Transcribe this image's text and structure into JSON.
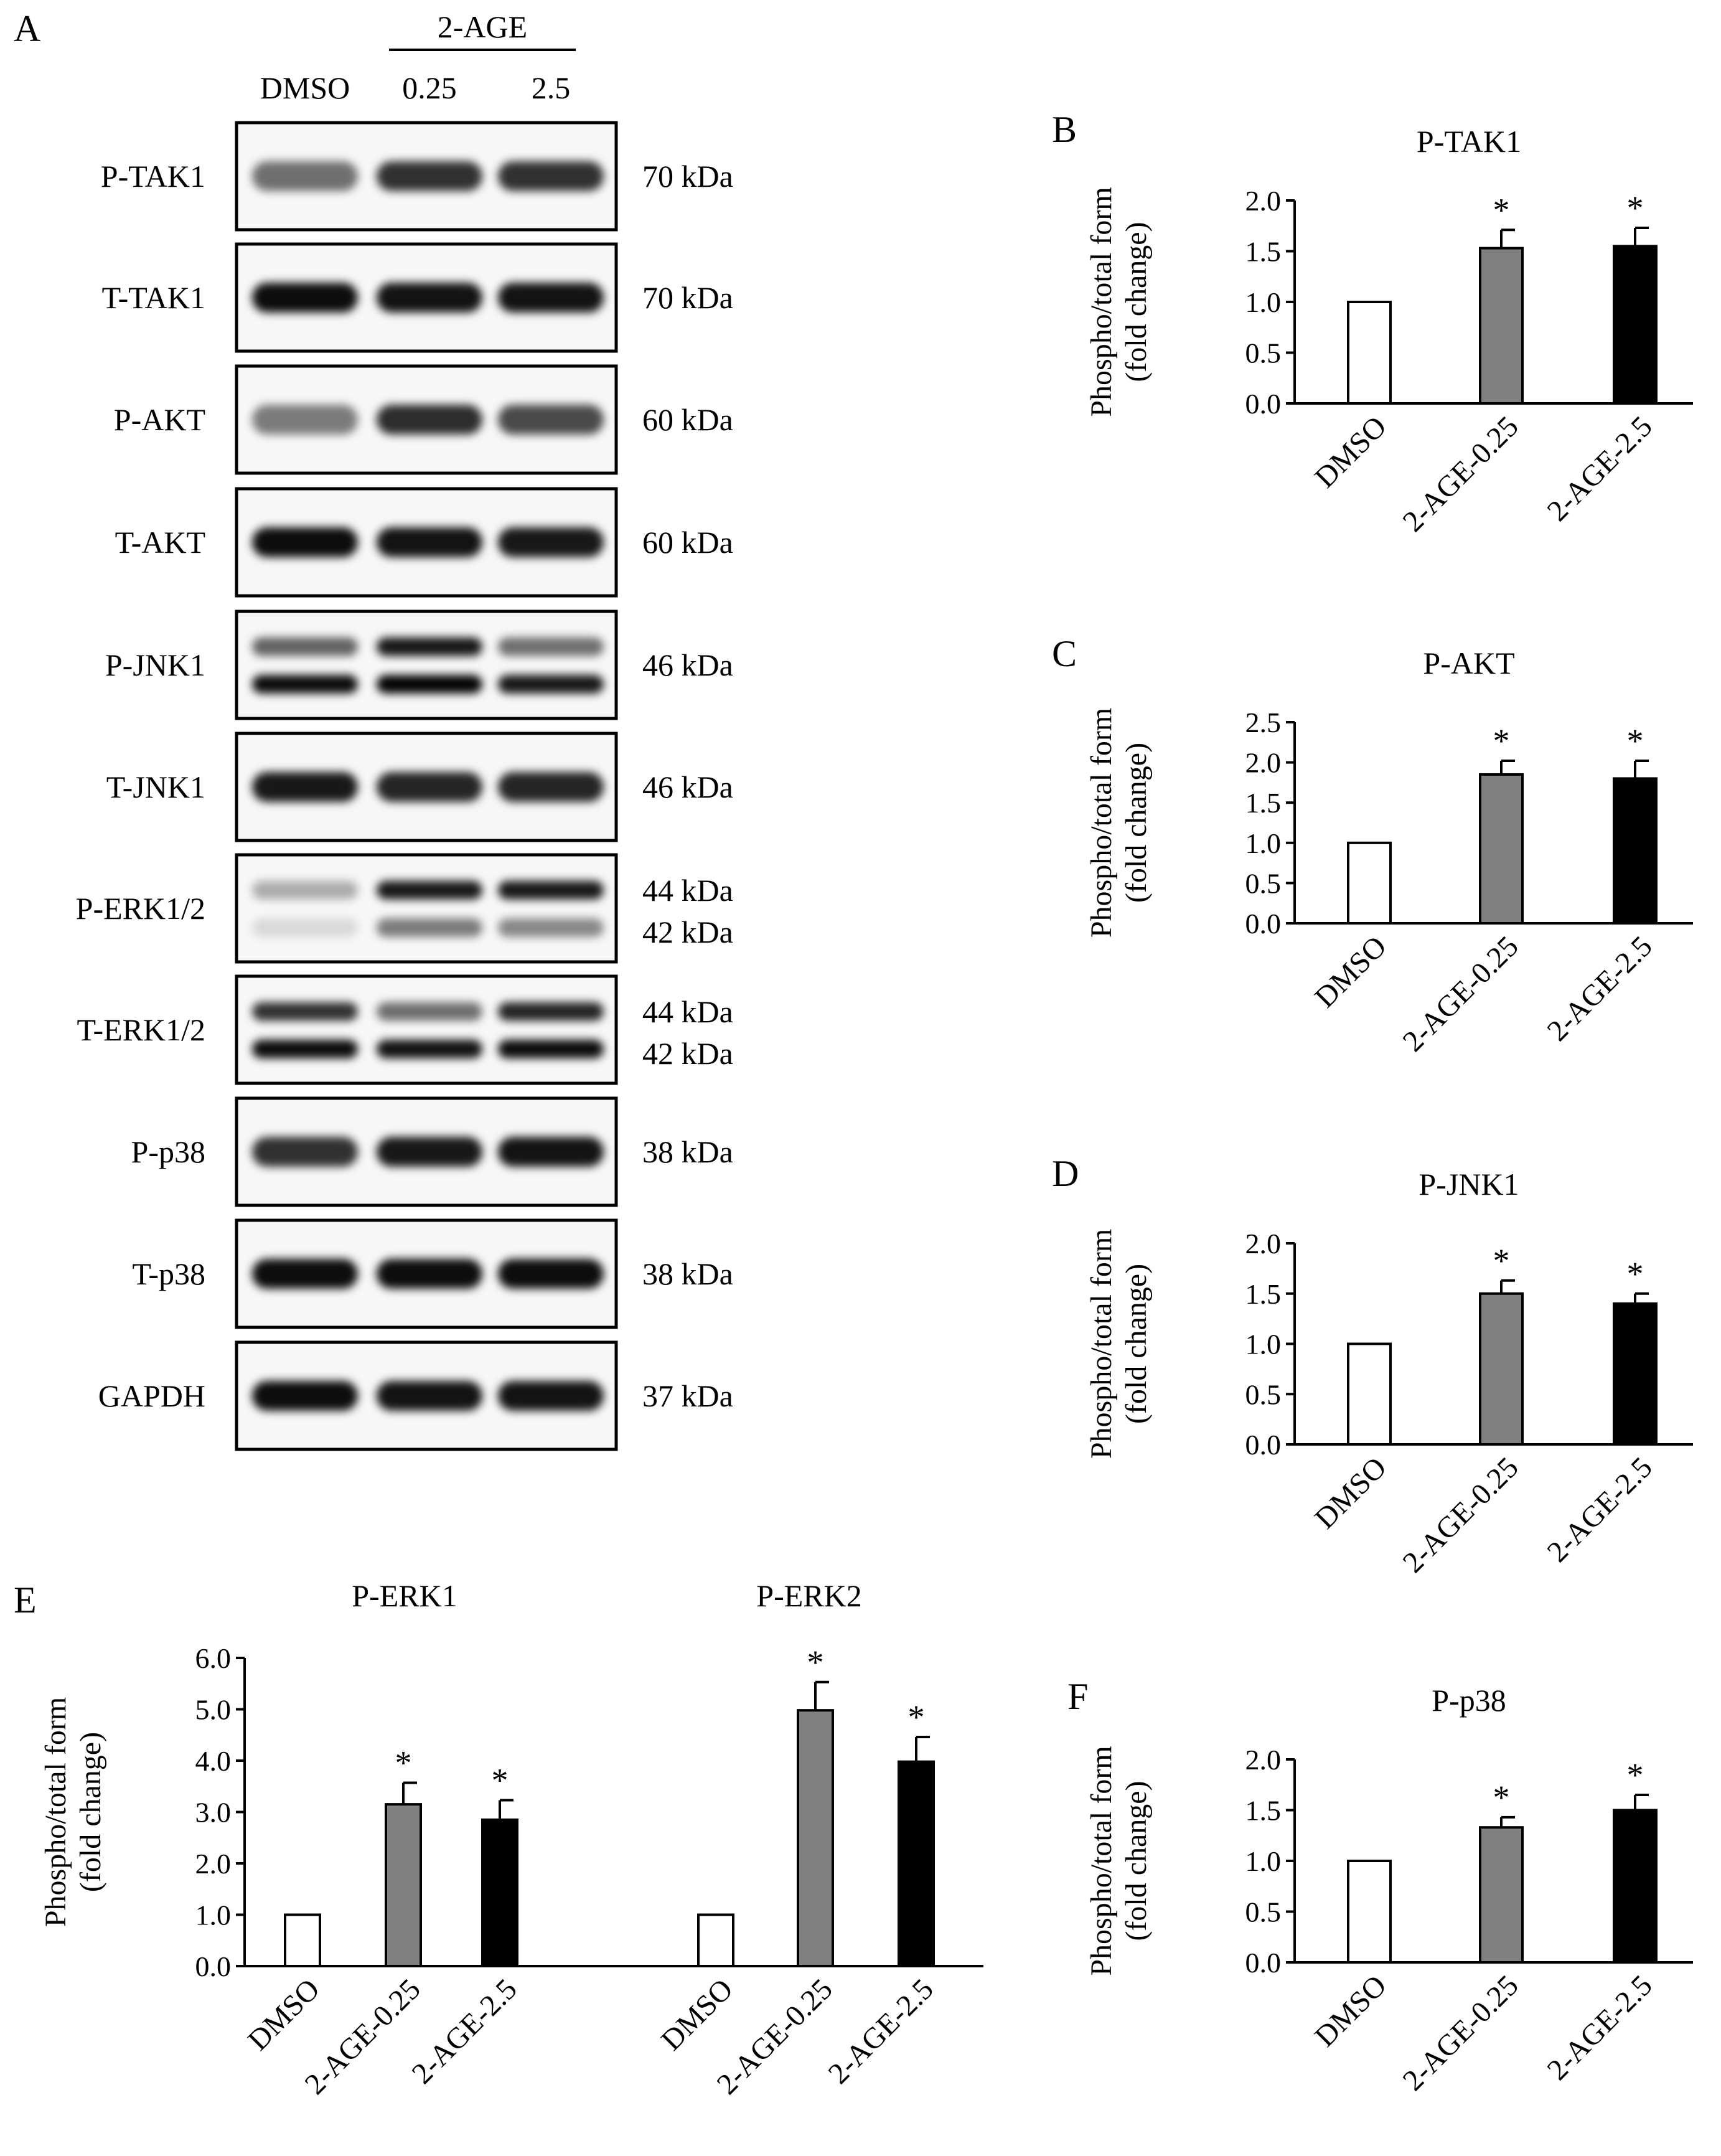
{
  "panel_letters": {
    "a": "A",
    "b": "B",
    "c": "C",
    "d": "D",
    "e": "E",
    "f": "F"
  },
  "blot": {
    "treatment_label": "2-AGE",
    "lanes": [
      "DMSO",
      "0.25",
      "2.5"
    ],
    "rows": [
      {
        "label": "P-TAK1",
        "kda": [
          "70 kDa"
        ],
        "bands": [
          [
            0.55,
            0.8,
            0.8
          ]
        ]
      },
      {
        "label": "T-TAK1",
        "kda": [
          "70 kDa"
        ],
        "bands": [
          [
            0.95,
            0.92,
            0.92
          ]
        ]
      },
      {
        "label": "P-AKT",
        "kda": [
          "60 kDa"
        ],
        "bands": [
          [
            0.5,
            0.82,
            0.7
          ]
        ]
      },
      {
        "label": "T-AKT",
        "kda": [
          "60 kDa"
        ],
        "bands": [
          [
            0.95,
            0.92,
            0.9
          ]
        ]
      },
      {
        "label": "P-JNK1",
        "kda": [
          "46 kDa"
        ],
        "bands": [
          [
            0.6,
            0.9,
            0.55
          ],
          [
            0.95,
            0.98,
            0.9
          ]
        ]
      },
      {
        "label": "T-JNK1",
        "kda": [
          "46 kDa"
        ],
        "bands": [
          [
            0.9,
            0.85,
            0.85
          ]
        ]
      },
      {
        "label": "P-ERK1/2",
        "kda": [
          "44 kDa",
          "42 kDa"
        ],
        "bands": [
          [
            0.3,
            0.9,
            0.9
          ],
          [
            0.12,
            0.5,
            0.45
          ]
        ]
      },
      {
        "label": "T-ERK1/2",
        "kda": [
          "44 kDa",
          "42 kDa"
        ],
        "bands": [
          [
            0.8,
            0.55,
            0.85
          ],
          [
            0.95,
            0.92,
            0.95
          ]
        ]
      },
      {
        "label": "P-p38",
        "kda": [
          "38 kDa"
        ],
        "bands": [
          [
            0.8,
            0.9,
            0.92
          ]
        ]
      },
      {
        "label": "T-p38",
        "kda": [
          "38 kDa"
        ],
        "bands": [
          [
            0.95,
            0.95,
            0.95
          ]
        ]
      },
      {
        "label": "GAPDH",
        "kda": [
          "37 kDa"
        ],
        "bands": [
          [
            0.95,
            0.92,
            0.92
          ]
        ]
      }
    ]
  },
  "chart_data": [
    {
      "panel": "B",
      "type": "bar",
      "title": "P-TAK1",
      "ylabel_line1": "Phospho/total form",
      "ylabel_line2": "(fold change)",
      "ylim": [
        0,
        2.0
      ],
      "yticks": [
        "0.0",
        "0.5",
        "1.0",
        "1.5",
        "2.0"
      ],
      "categories": [
        "DMSO",
        "2-AGE-0.25",
        "2-AGE-2.5"
      ],
      "values": [
        1.0,
        1.53,
        1.55
      ],
      "errors": [
        0,
        0.18,
        0.18
      ],
      "significance": [
        "",
        "*",
        "*"
      ],
      "bar_colors": [
        "#ffffff",
        "#808080",
        "#000000"
      ]
    },
    {
      "panel": "C",
      "type": "bar",
      "title": "P-AKT",
      "ylabel_line1": "Phospho/total form",
      "ylabel_line2": "(fold change)",
      "ylim": [
        0,
        2.5
      ],
      "yticks": [
        "0.0",
        "0.5",
        "1.0",
        "1.5",
        "2.0",
        "2.5"
      ],
      "categories": [
        "DMSO",
        "2-AGE-0.25",
        "2-AGE-2.5"
      ],
      "values": [
        1.0,
        1.85,
        1.8
      ],
      "errors": [
        0,
        0.17,
        0.22
      ],
      "significance": [
        "",
        "*",
        "*"
      ],
      "bar_colors": [
        "#ffffff",
        "#808080",
        "#000000"
      ]
    },
    {
      "panel": "D",
      "type": "bar",
      "title": "P-JNK1",
      "ylabel_line1": "Phospho/total form",
      "ylabel_line2": "(fold change)",
      "ylim": [
        0,
        2.0
      ],
      "yticks": [
        "0.0",
        "0.5",
        "1.0",
        "1.5",
        "2.0"
      ],
      "categories": [
        "DMSO",
        "2-AGE-0.25",
        "2-AGE-2.5"
      ],
      "values": [
        1.0,
        1.5,
        1.4
      ],
      "errors": [
        0,
        0.13,
        0.1
      ],
      "significance": [
        "",
        "*",
        "*"
      ],
      "bar_colors": [
        "#ffffff",
        "#808080",
        "#000000"
      ]
    },
    {
      "panel": "E",
      "type": "bar",
      "titles": [
        "P-ERK1",
        "P-ERK2"
      ],
      "ylabel_line1": "Phospho/total form",
      "ylabel_line2": "(fold change)",
      "ylim": [
        0,
        6.0
      ],
      "yticks": [
        "0.0",
        "1.0",
        "2.0",
        "3.0",
        "4.0",
        "5.0",
        "6.0"
      ],
      "groups": [
        {
          "name": "P-ERK1",
          "categories": [
            "DMSO",
            "2-AGE-0.25",
            "2-AGE-2.5"
          ],
          "values": [
            1.0,
            3.15,
            2.85
          ],
          "errors": [
            0,
            0.42,
            0.38
          ],
          "significance": [
            "",
            "*",
            "*"
          ]
        },
        {
          "name": "P-ERK2",
          "categories": [
            "DMSO",
            "2-AGE-0.25",
            "2-AGE-2.5"
          ],
          "values": [
            1.0,
            4.98,
            3.98
          ],
          "errors": [
            0,
            0.55,
            0.48
          ],
          "significance": [
            "",
            "*",
            "*"
          ]
        }
      ],
      "bar_colors": [
        "#ffffff",
        "#808080",
        "#000000"
      ]
    },
    {
      "panel": "F",
      "type": "bar",
      "title": "P-p38",
      "ylabel_line1": "Phospho/total form",
      "ylabel_line2": "(fold change)",
      "ylim": [
        0,
        2.0
      ],
      "yticks": [
        "0.0",
        "0.5",
        "1.0",
        "1.5",
        "2.0"
      ],
      "categories": [
        "DMSO",
        "2-AGE-0.25",
        "2-AGE-2.5"
      ],
      "values": [
        1.0,
        1.33,
        1.5
      ],
      "errors": [
        0,
        0.1,
        0.15
      ],
      "significance": [
        "",
        "*",
        "*"
      ],
      "bar_colors": [
        "#ffffff",
        "#808080",
        "#000000"
      ]
    }
  ]
}
